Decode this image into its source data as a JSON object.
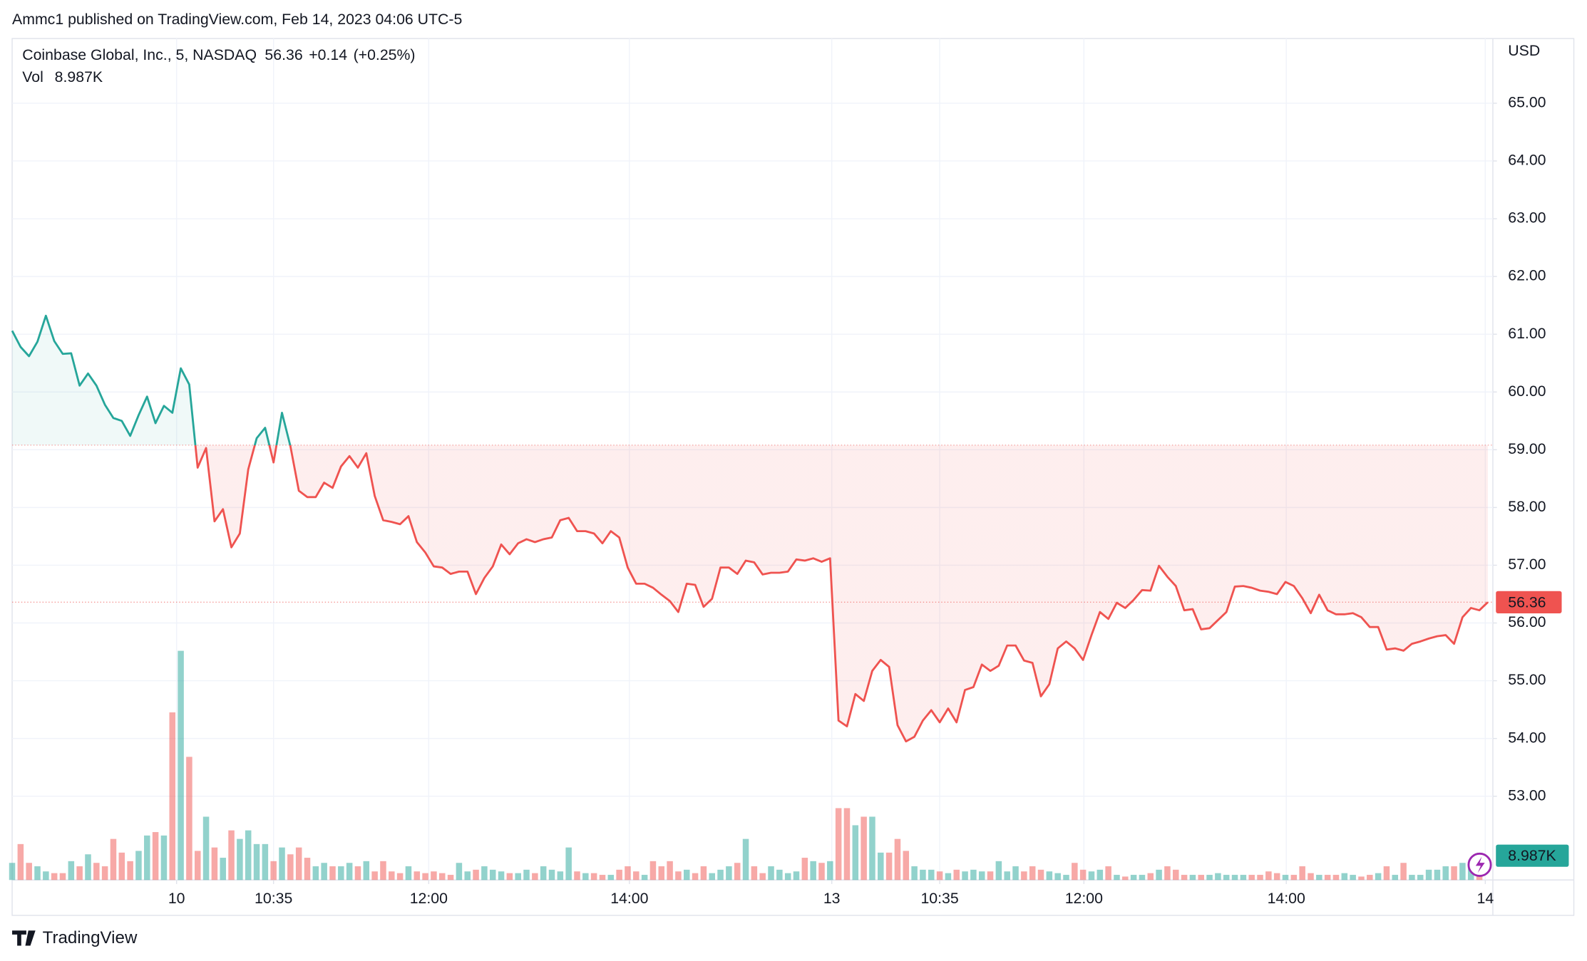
{
  "header": {
    "publisher": "Ammc1 published on TradingView.com, Feb 14, 2023 04:06 UTC-5"
  },
  "footer": {
    "brand": "TradingView"
  },
  "chart_data": {
    "type": "line",
    "title": "Coinbase Global, Inc., 5, NASDAQ",
    "last_price": 56.36,
    "change": "+0.14",
    "change_pct": "(+0.25%)",
    "currency": "USD",
    "baseline": 59.08,
    "up_color": "#26a69a",
    "down_color": "#ef5350",
    "grid": true,
    "ylim": [
      51.55,
      66.12
    ],
    "yticks": [
      {
        "value": 53,
        "label": "53.00"
      },
      {
        "value": 54,
        "label": "54.00"
      },
      {
        "value": 55,
        "label": "55.00"
      },
      {
        "value": 56,
        "label": "56.00"
      },
      {
        "value": 57,
        "label": "57.00"
      },
      {
        "value": 58,
        "label": "58.00"
      },
      {
        "value": 59,
        "label": "59.00"
      },
      {
        "value": 60,
        "label": "60.00"
      },
      {
        "value": 61,
        "label": "61.00"
      },
      {
        "value": 62,
        "label": "62.00"
      },
      {
        "value": 63,
        "label": "63.00"
      },
      {
        "value": 64,
        "label": "64.00"
      },
      {
        "value": 65,
        "label": "65.00"
      }
    ],
    "xlim": [
      0,
      175.6
    ],
    "xticks": [
      {
        "value": 19.5,
        "label": "10"
      },
      {
        "value": 31,
        "label": "10:35"
      },
      {
        "value": 49.4,
        "label": "12:00"
      },
      {
        "value": 73.2,
        "label": "14:00"
      },
      {
        "value": 97.2,
        "label": "13"
      },
      {
        "value": 110,
        "label": "10:35"
      },
      {
        "value": 127.1,
        "label": "12:00"
      },
      {
        "value": 151.1,
        "label": "14:00"
      },
      {
        "value": 174.7,
        "label": "14"
      }
    ],
    "values": [
      61.06,
      60.78,
      60.62,
      60.87,
      61.32,
      60.88,
      60.66,
      60.67,
      60.11,
      60.32,
      60.11,
      59.78,
      59.55,
      59.5,
      59.24,
      59.6,
      59.92,
      59.46,
      59.76,
      59.64,
      60.41,
      60.13,
      58.69,
      59.03,
      57.76,
      57.97,
      57.31,
      57.55,
      58.66,
      59.2,
      59.38,
      58.78,
      59.64,
      59.06,
      58.29,
      58.18,
      58.18,
      58.43,
      58.34,
      58.71,
      58.89,
      58.69,
      58.94,
      58.2,
      57.78,
      57.75,
      57.71,
      57.85,
      57.4,
      57.22,
      56.98,
      56.96,
      56.85,
      56.89,
      56.89,
      56.5,
      56.78,
      56.98,
      57.36,
      57.19,
      57.38,
      57.45,
      57.4,
      57.45,
      57.48,
      57.78,
      57.82,
      57.59,
      57.59,
      57.55,
      57.38,
      57.59,
      57.48,
      56.96,
      56.68,
      56.68,
      56.61,
      56.49,
      56.38,
      56.19,
      56.68,
      56.66,
      56.28,
      56.42,
      56.96,
      56.96,
      56.85,
      57.08,
      57.05,
      56.84,
      56.87,
      56.87,
      56.89,
      57.1,
      57.08,
      57.12,
      57.06,
      57.12,
      54.31,
      54.21,
      54.77,
      54.65,
      55.17,
      55.36,
      55.24,
      54.23,
      53.95,
      54.03,
      54.31,
      54.49,
      54.28,
      54.52,
      54.28,
      54.84,
      54.89,
      55.28,
      55.17,
      55.26,
      55.61,
      55.61,
      55.35,
      55.31,
      54.73,
      54.94,
      55.56,
      55.68,
      55.56,
      55.36,
      55.79,
      56.19,
      56.07,
      56.35,
      56.26,
      56.4,
      56.57,
      56.56,
      56.99,
      56.8,
      56.64,
      56.22,
      56.24,
      55.89,
      55.91,
      56.05,
      56.19,
      56.63,
      56.64,
      56.61,
      56.56,
      56.54,
      56.5,
      56.71,
      56.64,
      56.43,
      56.17,
      56.49,
      56.22,
      56.15,
      56.15,
      56.17,
      56.1,
      55.93,
      55.93,
      55.54,
      55.56,
      55.52,
      55.64,
      55.68,
      55.73,
      55.77,
      55.79,
      55.64,
      56.1,
      56.26,
      56.22,
      56.36
    ],
    "volume": {
      "name": "Vol",
      "last_label": "8.987K",
      "lim": [
        0,
        492
      ],
      "values": [
        10,
        21,
        10,
        8,
        5,
        4,
        4,
        11,
        8,
        15,
        10,
        8,
        24,
        16,
        11,
        17,
        26,
        28,
        26,
        98,
        134,
        72,
        17,
        37,
        19,
        13,
        29,
        24,
        29,
        21,
        21,
        11,
        19,
        15,
        19,
        13,
        8,
        10,
        8,
        8,
        10,
        8,
        11,
        5,
        11,
        5,
        4,
        8,
        5,
        4,
        5,
        4,
        3,
        10,
        5,
        6,
        8,
        6,
        5,
        4,
        4,
        6,
        4,
        8,
        6,
        5,
        19,
        5,
        4,
        4,
        3,
        3,
        6,
        8,
        5,
        3,
        11,
        8,
        11,
        5,
        6,
        4,
        8,
        4,
        6,
        8,
        10,
        24,
        8,
        4,
        8,
        6,
        4,
        5,
        13,
        11,
        10,
        11,
        42,
        42,
        32,
        37,
        37,
        16,
        16,
        24,
        17,
        8,
        6,
        6,
        5,
        4,
        6,
        5,
        6,
        5,
        5,
        11,
        5,
        8,
        5,
        8,
        6,
        5,
        4,
        3,
        10,
        6,
        5,
        6,
        8,
        3,
        2,
        3,
        3,
        4,
        6,
        8,
        6,
        3,
        3,
        3,
        3,
        4,
        3,
        3,
        3,
        3,
        3,
        5,
        4,
        3,
        3,
        8,
        4,
        3,
        3,
        3,
        4,
        3,
        2,
        3,
        4,
        8,
        3,
        10,
        3,
        3,
        6,
        6,
        8,
        8,
        10,
        8,
        8.987
      ]
    }
  }
}
